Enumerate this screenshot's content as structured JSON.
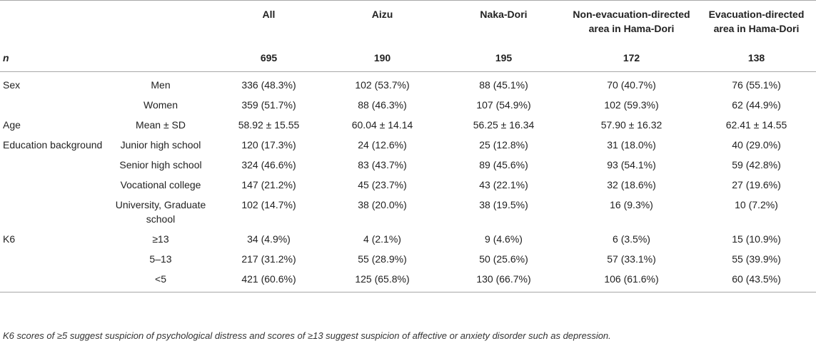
{
  "table": {
    "headers": [
      "All",
      "Aizu",
      "Naka-Dori",
      "Non-evacuation-directed area in Hama-Dori",
      "Evacuation-directed area in Hama-Dori"
    ],
    "n_row": {
      "label": "n",
      "values": [
        "695",
        "190",
        "195",
        "172",
        "138"
      ]
    },
    "rows": [
      {
        "group": "Sex",
        "label": "Men",
        "values": [
          "336 (48.3%)",
          "102 (53.7%)",
          "88 (45.1%)",
          "70 (40.7%)",
          "76 (55.1%)"
        ]
      },
      {
        "group": "",
        "label": "Women",
        "values": [
          "359 (51.7%)",
          "88 (46.3%)",
          "107 (54.9%)",
          "102 (59.3%)",
          "62 (44.9%)"
        ]
      },
      {
        "group": "Age",
        "label": "Mean ± SD",
        "values": [
          "58.92 ± 15.55",
          "60.04 ± 14.14",
          "56.25 ± 16.34",
          "57.90 ± 16.32",
          "62.41 ± 14.55"
        ]
      },
      {
        "group": "Education background",
        "label": "Junior high school",
        "values": [
          "120 (17.3%)",
          "24 (12.6%)",
          "25 (12.8%)",
          "31 (18.0%)",
          "40 (29.0%)"
        ]
      },
      {
        "group": "",
        "label": "Senior high school",
        "values": [
          "324 (46.6%)",
          "83 (43.7%)",
          "89 (45.6%)",
          "93 (54.1%)",
          "59 (42.8%)"
        ]
      },
      {
        "group": "",
        "label": "Vocational college",
        "values": [
          "147 (21.2%)",
          "45 (23.7%)",
          "43 (22.1%)",
          "32 (18.6%)",
          "27 (19.6%)"
        ]
      },
      {
        "group": "",
        "label": "University, Graduate school",
        "values": [
          "102 (14.7%)",
          "38 (20.0%)",
          "38 (19.5%)",
          "16 (9.3%)",
          "10 (7.2%)"
        ]
      },
      {
        "group": "K6",
        "label": "≥13",
        "values": [
          "34 (4.9%)",
          "4 (2.1%)",
          "9 (4.6%)",
          "6 (3.5%)",
          "15 (10.9%)"
        ]
      },
      {
        "group": "",
        "label": "5–13",
        "values": [
          "217 (31.2%)",
          "55 (28.9%)",
          "50 (25.6%)",
          "57 (33.1%)",
          "55 (39.9%)"
        ]
      },
      {
        "group": "",
        "label": "<5",
        "values": [
          "421 (60.6%)",
          "125 (65.8%)",
          "130 (66.7%)",
          "106 (61.6%)",
          "60 (43.5%)"
        ]
      }
    ]
  },
  "footnote": "K6 scores of ≥5 suggest suspicion of psychological distress and scores of ≥13 suggest suspicion of affective or anxiety disorder such as depression."
}
